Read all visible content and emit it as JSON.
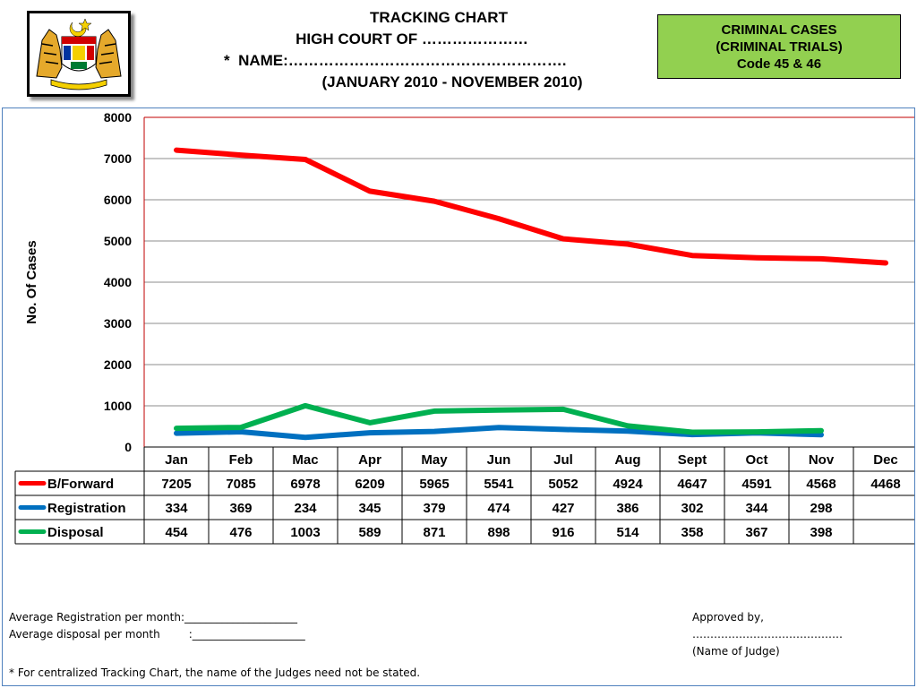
{
  "header": {
    "title_line1": "TRACKING CHART",
    "title_line2": "HIGH COURT OF …………………",
    "title_line3_prefix": "*",
    "title_line3": "NAME:……………………………………………….",
    "title_line4": "(JANUARY 2010 - NOVEMBER 2010)"
  },
  "badge": {
    "line1": "CRIMINAL CASES",
    "line2": "(CRIMINAL TRIALS)",
    "line3": "Code 45 & 46",
    "color": "#92d050"
  },
  "crest": {
    "icon": "coat-of-arms-icon"
  },
  "chart_data": {
    "type": "line",
    "ylabel": "No. Of Cases",
    "ylim": [
      0,
      8000
    ],
    "yticks": [
      0,
      1000,
      2000,
      3000,
      4000,
      5000,
      6000,
      7000,
      8000
    ],
    "grid": true,
    "categories": [
      "Jan",
      "Feb",
      "Mac",
      "Apr",
      "May",
      "Jun",
      "Jul",
      "Aug",
      "Sept",
      "Oct",
      "Nov",
      "Dec"
    ],
    "series": [
      {
        "name": "B/Forward",
        "color": "#ff0000",
        "values": [
          7205,
          7085,
          6978,
          6209,
          5965,
          5541,
          5052,
          4924,
          4647,
          4591,
          4568,
          4468
        ]
      },
      {
        "name": "Registration",
        "color": "#0070c0",
        "values": [
          334,
          369,
          234,
          345,
          379,
          474,
          427,
          386,
          302,
          344,
          298,
          null
        ]
      },
      {
        "name": "Disposal",
        "color": "#00b050",
        "values": [
          454,
          476,
          1003,
          589,
          871,
          898,
          916,
          514,
          358,
          367,
          398,
          null
        ]
      }
    ]
  },
  "notes": {
    "avg_registration": "Average Registration per month:_____________________",
    "avg_disposal_label": "Average disposal per month",
    "avg_disposal_line": ":_____________________"
  },
  "approval": {
    "line1": "Approved by,",
    "line2": "……………………………………",
    "line3": "(Name of Judge)"
  },
  "footnote": "* For centralized Tracking Chart, the name of the Judges need not be stated."
}
